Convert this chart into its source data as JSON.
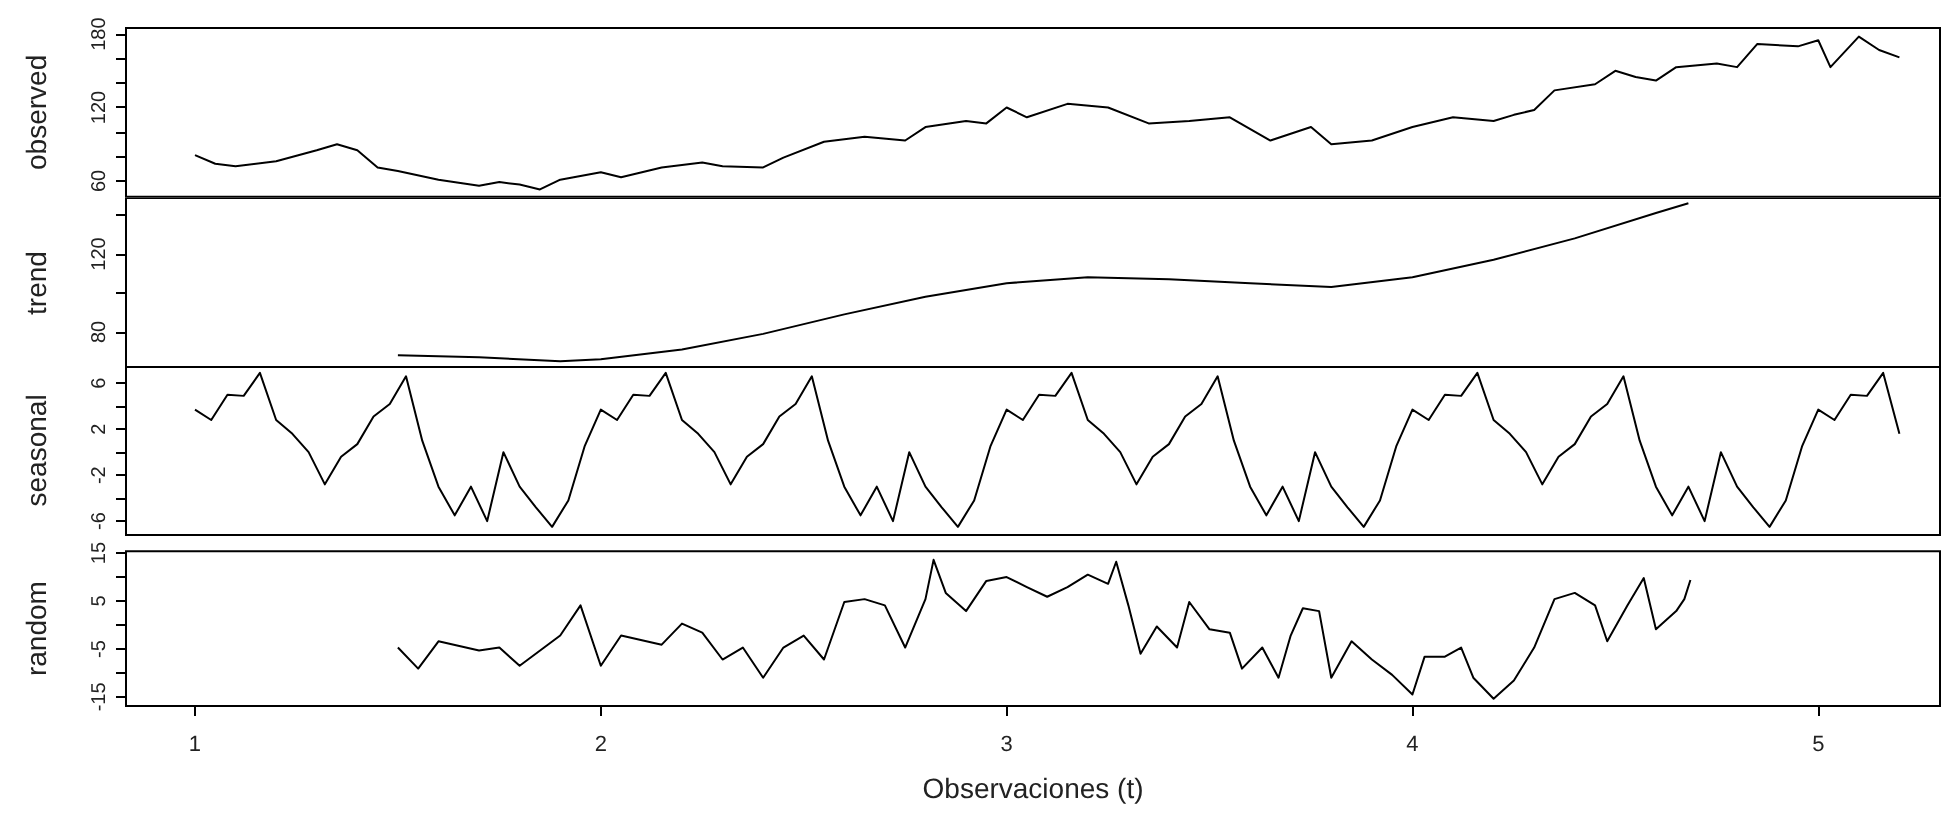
{
  "chart_data": [
    {
      "type": "line",
      "ylabel": "observed",
      "color": "#000000",
      "tick_labels": "y",
      "xlim": [
        0.83,
        5.3
      ],
      "xticks": [
        1,
        2,
        3,
        4,
        5
      ],
      "ylim": [
        47,
        185
      ],
      "yticks": [
        60,
        {
          "value": 80,
          "label": null
        },
        {
          "value": 100,
          "label": null
        },
        120,
        {
          "value": 140,
          "label": null
        },
        {
          "value": 160,
          "label": null
        },
        180
      ],
      "x": [
        1.0,
        1.05,
        1.1,
        1.2,
        1.3,
        1.35,
        1.4,
        1.45,
        1.5,
        1.6,
        1.7,
        1.75,
        1.8,
        1.85,
        1.9,
        2.0,
        2.05,
        2.15,
        2.25,
        2.3,
        2.4,
        2.45,
        2.55,
        2.65,
        2.75,
        2.8,
        2.9,
        2.95,
        3.0,
        3.05,
        3.15,
        3.25,
        3.35,
        3.45,
        3.55,
        3.65,
        3.75,
        3.8,
        3.9,
        4.0,
        4.1,
        4.2,
        4.25,
        4.3,
        4.35,
        4.45,
        4.5,
        4.55,
        4.6,
        4.65,
        4.75,
        4.8,
        4.85,
        4.95,
        5.0,
        5.03,
        5.1,
        5.15,
        5.2
      ],
      "values": [
        81,
        74,
        72,
        76,
        85,
        90,
        85,
        71,
        68,
        61,
        56,
        59,
        57,
        53,
        61,
        67,
        63,
        71,
        75,
        72,
        71,
        79,
        92,
        96,
        93,
        104,
        109,
        107,
        120,
        112,
        123,
        120,
        107,
        109,
        112,
        93,
        104,
        90,
        93,
        104,
        112,
        109,
        114,
        118,
        134,
        139,
        150,
        145,
        142,
        153,
        156,
        153,
        172,
        170,
        175,
        153,
        178,
        167,
        161
      ]
    },
    {
      "type": "line",
      "ylabel": "trend",
      "color": "#000000",
      "tick_labels": "y",
      "xlim": [
        0.83,
        5.3
      ],
      "xticks": [
        1,
        2,
        3,
        4,
        5
      ],
      "ylim": [
        61.5,
        148.7
      ],
      "yticks": [
        80,
        {
          "value": 100,
          "label": null
        },
        120,
        {
          "value": 140,
          "label": null
        }
      ],
      "x": [
        1.5,
        1.7,
        1.9,
        2.0,
        2.2,
        2.4,
        2.6,
        2.8,
        3.0,
        3.2,
        3.4,
        3.6,
        3.8,
        4.0,
        4.2,
        4.4,
        4.6,
        4.68
      ],
      "values": [
        68,
        67,
        65,
        66,
        71,
        79,
        89,
        98,
        105,
        108,
        107,
        105,
        103,
        108,
        117,
        128,
        141,
        146
      ]
    },
    {
      "type": "line",
      "ylabel": "seasonal",
      "color": "#000000",
      "tick_labels": "y",
      "xlim": [
        0.83,
        5.3
      ],
      "xticks": [
        1,
        2,
        3,
        4,
        5
      ],
      "ylim": [
        -7.2,
        7.5
      ],
      "yticks": [
        -6,
        {
          "value": -4,
          "label": null
        },
        -2,
        {
          "value": 0,
          "label": null
        },
        2,
        {
          "value": 4,
          "label": null
        },
        6
      ],
      "x": [
        1.0,
        1.04,
        1.08,
        1.12,
        1.16,
        1.2,
        1.24,
        1.28,
        1.32,
        1.36,
        1.4,
        1.44,
        1.48,
        1.52,
        1.56,
        1.6,
        1.64,
        1.68,
        1.72,
        1.76,
        1.8,
        1.84,
        1.88,
        1.92,
        1.96,
        2.0,
        2.04,
        2.08,
        2.12,
        2.16,
        2.2,
        2.24,
        2.28,
        2.32,
        2.36,
        2.4,
        2.44,
        2.48,
        2.52,
        2.56,
        2.6,
        2.64,
        2.68,
        2.72,
        2.76,
        2.8,
        2.84,
        2.88,
        2.92,
        2.96,
        3.0,
        3.04,
        3.08,
        3.12,
        3.16,
        3.2,
        3.24,
        3.28,
        3.32,
        3.36,
        3.4,
        3.44,
        3.48,
        3.52,
        3.56,
        3.6,
        3.64,
        3.68,
        3.72,
        3.76,
        3.8,
        3.84,
        3.88,
        3.92,
        3.96,
        4.0,
        4.04,
        4.08,
        4.12,
        4.16,
        4.2,
        4.24,
        4.28,
        4.32,
        4.36,
        4.4,
        4.44,
        4.48,
        4.52,
        4.56,
        4.6,
        4.64,
        4.68,
        4.72,
        4.76,
        4.8,
        4.84,
        4.88,
        4.92,
        4.96,
        5.0,
        5.04,
        5.08,
        5.12,
        5.16,
        5.2
      ],
      "values": [
        3.7,
        2.8,
        5,
        4.9,
        6.9,
        2.8,
        1.6,
        0,
        -2.8,
        -0.4,
        0.7,
        3.1,
        4.2,
        6.6,
        1,
        -3,
        -5.5,
        -3,
        -6,
        0,
        -3,
        -4.8,
        -6.5,
        -4.2,
        0.5,
        3.7,
        2.8,
        5,
        4.9,
        6.9,
        2.8,
        1.6,
        0,
        -2.8,
        -0.4,
        0.7,
        3.1,
        4.2,
        6.6,
        1,
        -3,
        -5.5,
        -3,
        -6,
        0,
        -3,
        -4.8,
        -6.5,
        -4.2,
        0.5,
        3.7,
        2.8,
        5,
        4.9,
        6.9,
        2.8,
        1.6,
        0,
        -2.8,
        -0.4,
        0.7,
        3.1,
        4.2,
        6.6,
        1,
        -3,
        -5.5,
        -3,
        -6,
        0,
        -3,
        -4.8,
        -6.5,
        -4.2,
        0.5,
        3.7,
        2.8,
        5,
        4.9,
        6.9,
        2.8,
        1.6,
        0,
        -2.8,
        -0.4,
        0.7,
        3.1,
        4.2,
        6.6,
        1,
        -3,
        -5.5,
        -3,
        -6,
        0,
        -3,
        -4.8,
        -6.5,
        -4.2,
        0.5,
        3.7,
        2.8,
        5,
        4.9,
        6.9,
        1.6
      ]
    },
    {
      "type": "line",
      "ylabel": "random",
      "xlabel": "Observaciones (t)",
      "color": "#000000",
      "xlim": [
        0.83,
        5.3
      ],
      "xticks": [
        1,
        2,
        3,
        4,
        5
      ],
      "ylim": [
        -16.9,
        15.4
      ],
      "yticks": [
        -15,
        {
          "value": -10,
          "label": null
        },
        -5,
        {
          "value": 0,
          "label": null
        },
        5,
        {
          "value": 10,
          "label": null
        },
        15
      ],
      "x": [
        1.5,
        1.55,
        1.6,
        1.7,
        1.75,
        1.8,
        1.9,
        1.95,
        2.0,
        2.05,
        2.15,
        2.2,
        2.25,
        2.3,
        2.35,
        2.4,
        2.45,
        2.5,
        2.55,
        2.6,
        2.65,
        2.7,
        2.75,
        2.8,
        2.82,
        2.85,
        2.9,
        2.95,
        3.0,
        3.05,
        3.1,
        3.15,
        3.2,
        3.25,
        3.27,
        3.3,
        3.33,
        3.37,
        3.42,
        3.45,
        3.5,
        3.55,
        3.58,
        3.63,
        3.67,
        3.7,
        3.73,
        3.77,
        3.8,
        3.85,
        3.9,
        3.95,
        4.0,
        4.03,
        4.08,
        4.12,
        4.15,
        4.2,
        4.25,
        4.3,
        4.35,
        4.4,
        4.45,
        4.48,
        4.53,
        4.57,
        4.6,
        4.65,
        4.67,
        4.685
      ],
      "values": [
        -4.7,
        -9.1,
        -3.4,
        -5.3,
        -4.7,
        -8.5,
        -2.2,
        4.1,
        -8.5,
        -2.2,
        -4.1,
        0.3,
        -1.6,
        -7.2,
        -4.7,
        -11,
        -4.7,
        -2.2,
        -7.2,
        4.8,
        5.4,
        4.1,
        -4.7,
        5.4,
        13.6,
        6.7,
        2.9,
        9.2,
        10,
        7.9,
        5.9,
        7.9,
        10.5,
        8.6,
        13.2,
        4.1,
        -6,
        -0.3,
        -4.7,
        4.8,
        -0.9,
        -1.6,
        -9.1,
        -4.7,
        -11,
        -2.2,
        3.5,
        2.9,
        -11,
        -3.4,
        -7.2,
        -10.4,
        -14.5,
        -6.6,
        -6.6,
        -4.7,
        -11,
        -15.4,
        -11.6,
        -4.7,
        5.4,
        6.7,
        4.1,
        -3.4,
        4.1,
        9.8,
        -0.9,
        2.9,
        5.4,
        9.4
      ]
    }
  ]
}
